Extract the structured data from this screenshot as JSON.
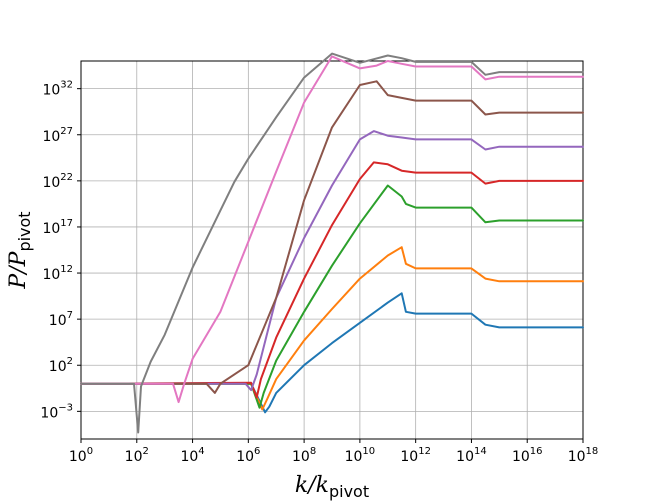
{
  "chart_data": {
    "type": "line",
    "title": "",
    "xlabel": {
      "main": "k/k",
      "sub": "pivot"
    },
    "ylabel": {
      "main": "P/P",
      "sub": "pivot"
    },
    "xscale": "log",
    "yscale": "log",
    "xlim_exp": [
      0,
      18
    ],
    "ylim_exp": [
      -6,
      35
    ],
    "grid": true,
    "legend": "none",
    "xticks": [
      {
        "base": "10",
        "exp": "0"
      },
      {
        "base": "10",
        "exp": "2"
      },
      {
        "base": "10",
        "exp": "4"
      },
      {
        "base": "10",
        "exp": "6"
      },
      {
        "base": "10",
        "exp": "8"
      },
      {
        "base": "10",
        "exp": "10"
      },
      {
        "base": "10",
        "exp": "12"
      },
      {
        "base": "10",
        "exp": "14"
      },
      {
        "base": "10",
        "exp": "16"
      },
      {
        "base": "10",
        "exp": "18"
      }
    ],
    "yticks": [
      {
        "base": "10",
        "exp": "−3"
      },
      {
        "base": "10",
        "exp": "2"
      },
      {
        "base": "10",
        "exp": "7"
      },
      {
        "base": "10",
        "exp": "12"
      },
      {
        "base": "10",
        "exp": "17"
      },
      {
        "base": "10",
        "exp": "22"
      },
      {
        "base": "10",
        "exp": "27"
      },
      {
        "base": "10",
        "exp": "32"
      }
    ],
    "series": [
      {
        "color": "#1f77b4",
        "points": [
          [
            0,
            0
          ],
          [
            6.1,
            0
          ],
          [
            6.6,
            -3.1
          ],
          [
            6.75,
            -2.5
          ],
          [
            7,
            -1
          ],
          [
            8,
            2
          ],
          [
            9,
            4.4
          ],
          [
            10,
            6.6
          ],
          [
            11,
            8.8
          ],
          [
            11.5,
            9.8
          ],
          [
            11.65,
            7.8
          ],
          [
            12,
            7.6
          ],
          [
            14,
            7.6
          ],
          [
            14.5,
            6.4
          ],
          [
            15,
            6.1
          ],
          [
            18,
            6.1
          ]
        ]
      },
      {
        "color": "#ff7f0e",
        "points": [
          [
            0,
            0
          ],
          [
            6.1,
            0
          ],
          [
            6.5,
            -2.8
          ],
          [
            6.7,
            -1.5
          ],
          [
            7,
            0.5
          ],
          [
            8,
            4.7
          ],
          [
            9,
            8.1
          ],
          [
            10,
            11.4
          ],
          [
            11,
            13.9
          ],
          [
            11.5,
            14.8
          ],
          [
            11.65,
            13
          ],
          [
            12,
            12.5
          ],
          [
            14,
            12.5
          ],
          [
            14.5,
            11.4
          ],
          [
            15,
            11.1
          ],
          [
            18,
            11.1
          ]
        ]
      },
      {
        "color": "#2ca02c",
        "points": [
          [
            0,
            0
          ],
          [
            6.1,
            0
          ],
          [
            6.4,
            -2.6
          ],
          [
            6.55,
            -1
          ],
          [
            7,
            2.5
          ],
          [
            8,
            7.8
          ],
          [
            9,
            12.8
          ],
          [
            10,
            17.4
          ],
          [
            11,
            21.5
          ],
          [
            11.5,
            20.3
          ],
          [
            11.65,
            19.5
          ],
          [
            12,
            19.1
          ],
          [
            14,
            19.1
          ],
          [
            14.5,
            17.5
          ],
          [
            15,
            17.7
          ],
          [
            18,
            17.7
          ]
        ]
      },
      {
        "color": "#d62728",
        "points": [
          [
            0,
            0
          ],
          [
            6.1,
            0.1
          ],
          [
            6.3,
            -1.5
          ],
          [
            6.45,
            0.5
          ],
          [
            7,
            5
          ],
          [
            8,
            11.4
          ],
          [
            9,
            17.2
          ],
          [
            10,
            22.2
          ],
          [
            10.5,
            24
          ],
          [
            11,
            23.8
          ],
          [
            11.5,
            23.1
          ],
          [
            12,
            22.9
          ],
          [
            14,
            22.9
          ],
          [
            14.5,
            21.7
          ],
          [
            15,
            22
          ],
          [
            18,
            22
          ]
        ]
      },
      {
        "color": "#9467bd",
        "points": [
          [
            0,
            0
          ],
          [
            5.9,
            0
          ],
          [
            6.1,
            -0.7
          ],
          [
            6.3,
            1
          ],
          [
            7,
            9.3
          ],
          [
            8,
            15.8
          ],
          [
            9,
            21.5
          ],
          [
            10,
            26.5
          ],
          [
            10.5,
            27.4
          ],
          [
            11,
            26.9
          ],
          [
            11.5,
            26.7
          ],
          [
            12,
            26.5
          ],
          [
            14,
            26.5
          ],
          [
            14.5,
            25.4
          ],
          [
            15,
            25.7
          ],
          [
            18,
            25.7
          ]
        ]
      },
      {
        "color": "#8c564b",
        "points": [
          [
            0,
            0
          ],
          [
            4.5,
            0
          ],
          [
            4.8,
            -1
          ],
          [
            5,
            0
          ],
          [
            6,
            2
          ],
          [
            7,
            9.3
          ],
          [
            8,
            19.9
          ],
          [
            9,
            27.8
          ],
          [
            10,
            32.4
          ],
          [
            10.6,
            32.8
          ],
          [
            11,
            31.3
          ],
          [
            11.5,
            31
          ],
          [
            12,
            30.7
          ],
          [
            14,
            30.7
          ],
          [
            14.5,
            29.2
          ],
          [
            15,
            29.4
          ],
          [
            18,
            29.4
          ]
        ]
      },
      {
        "color": "#e377c2",
        "points": [
          [
            0,
            0
          ],
          [
            3.3,
            0
          ],
          [
            3.5,
            -2
          ],
          [
            3.7,
            0
          ],
          [
            4,
            2.7
          ],
          [
            5,
            7.8
          ],
          [
            6,
            15.4
          ],
          [
            7,
            23
          ],
          [
            8,
            30.5
          ],
          [
            9,
            35.5
          ],
          [
            10,
            34.2
          ],
          [
            10.6,
            34.5
          ],
          [
            11,
            35
          ],
          [
            11.5,
            34.7
          ],
          [
            12,
            34.4
          ],
          [
            14,
            34.4
          ],
          [
            14.5,
            33
          ],
          [
            15,
            33.3
          ],
          [
            18,
            33.3
          ]
        ]
      },
      {
        "color": "#7f7f7f",
        "points": [
          [
            0,
            0
          ],
          [
            1.9,
            0
          ],
          [
            2.05,
            -5.3
          ],
          [
            2.15,
            -0.3
          ],
          [
            2.5,
            2.4
          ],
          [
            3,
            5.3
          ],
          [
            4,
            12.6
          ],
          [
            5,
            18.8
          ],
          [
            5.5,
            21.9
          ],
          [
            6,
            24.4
          ],
          [
            7,
            28.9
          ],
          [
            8,
            33.2
          ],
          [
            9,
            35.8
          ],
          [
            10,
            34.8
          ],
          [
            10.5,
            35.2
          ],
          [
            11,
            35.6
          ],
          [
            11.5,
            35.3
          ],
          [
            12,
            34.9
          ],
          [
            14,
            34.9
          ],
          [
            14.5,
            33.5
          ],
          [
            15,
            33.8
          ],
          [
            18,
            33.8
          ]
        ]
      }
    ]
  }
}
